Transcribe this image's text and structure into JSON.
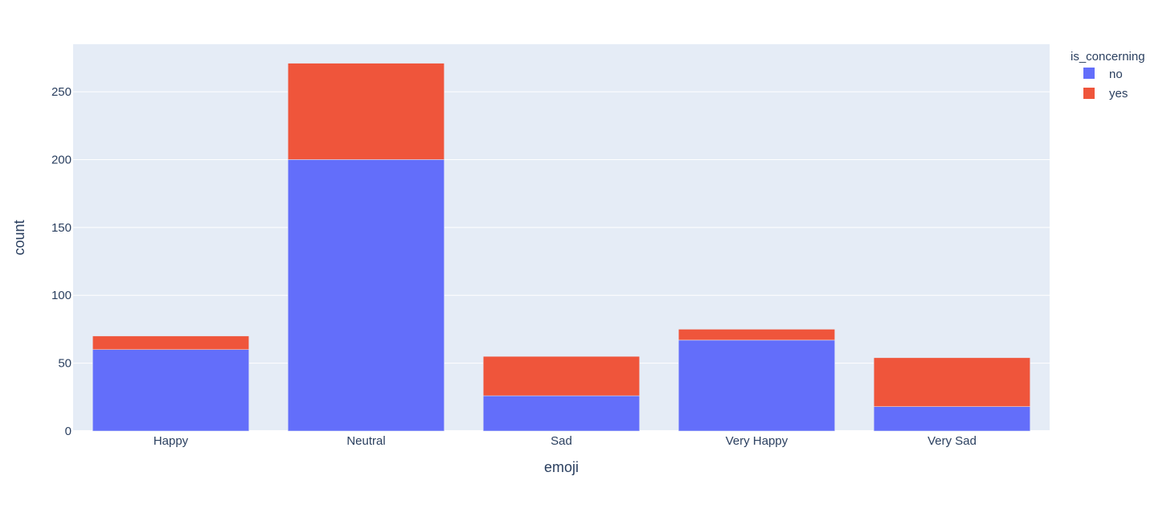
{
  "chart_data": {
    "type": "bar",
    "barmode": "stack",
    "title": "",
    "xlabel": "emoji",
    "ylabel": "count",
    "categories": [
      "Happy",
      "Neutral",
      "Sad",
      "Very Happy",
      "Very Sad"
    ],
    "series": [
      {
        "name": "no",
        "color": "#636efa",
        "values": [
          60,
          200,
          26,
          67,
          18
        ]
      },
      {
        "name": "yes",
        "color": "#ef553b",
        "values": [
          10,
          71,
          29,
          8,
          36
        ]
      }
    ],
    "ylim": [
      0,
      285
    ],
    "yticks": [
      0,
      50,
      100,
      150,
      200,
      250
    ],
    "grid": true,
    "legend": {
      "title": "is_concerning",
      "placement": "top-right"
    },
    "colors": {
      "plot_bg": "#e5ecf6",
      "grid": "#ffffff",
      "text": "#2a3f5f"
    }
  }
}
